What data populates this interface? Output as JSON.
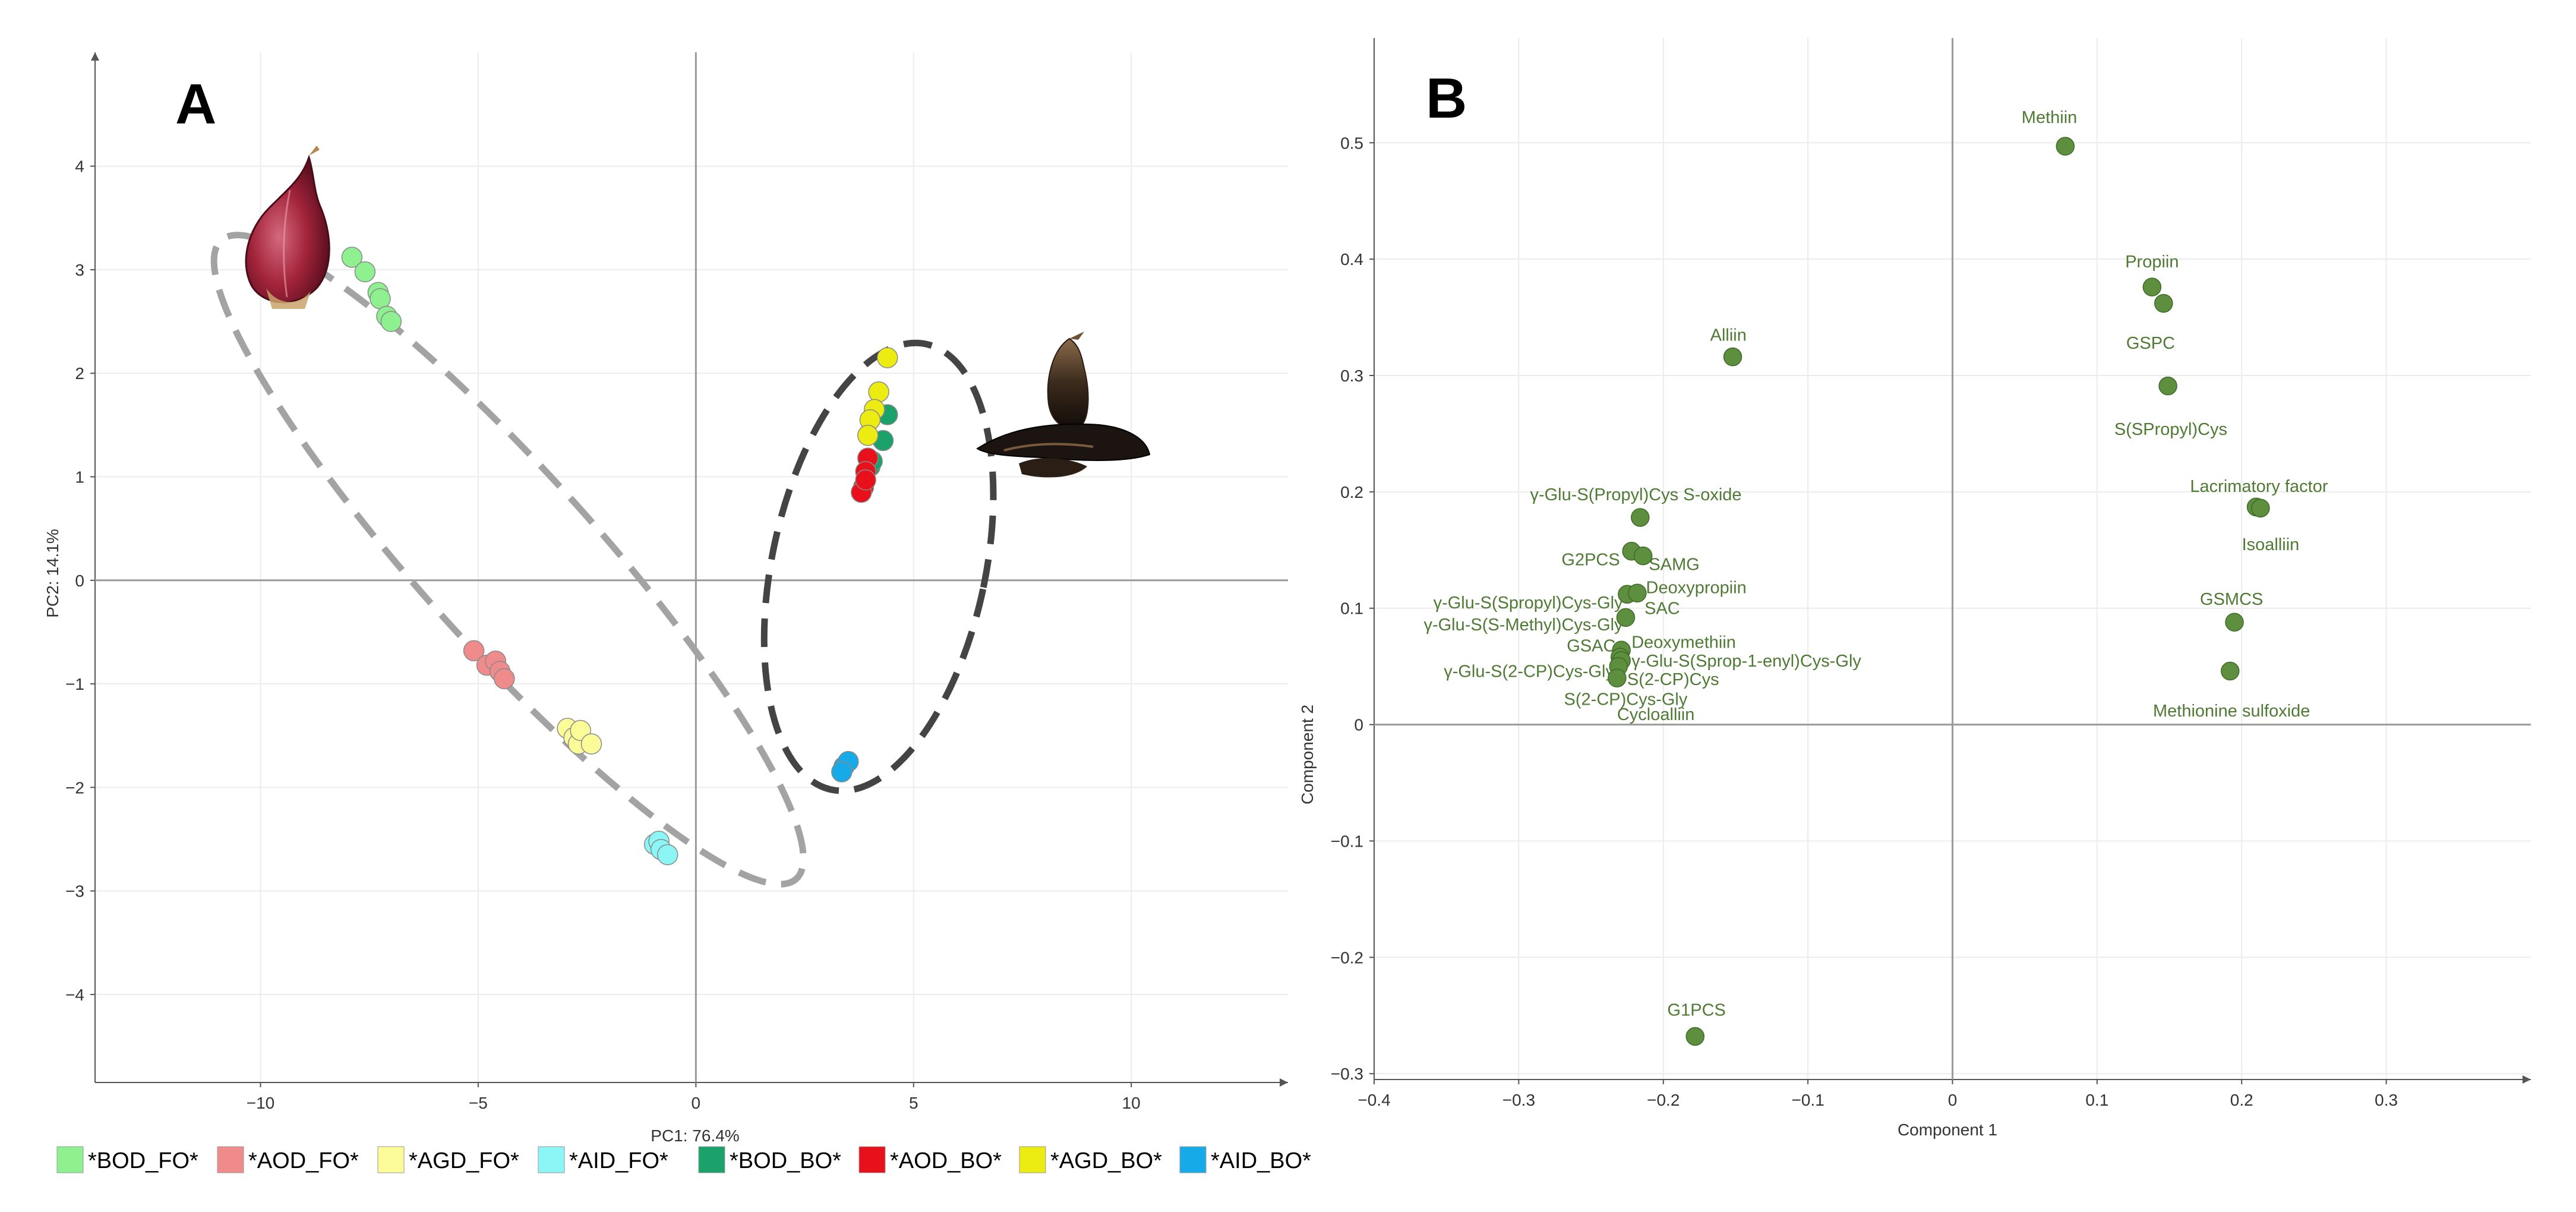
{
  "figure": {
    "panel_a_letter": "A",
    "panel_b_letter": "B"
  },
  "chart_data": [
    {
      "type": "scatter",
      "panel": "A",
      "title": "",
      "xlabel": "PC1: 76.4%",
      "ylabel": "PC2: 14.1%",
      "xlim": [
        -13.8,
        13.6
      ],
      "ylim": [
        -4.85,
        5.1
      ],
      "xticks": [
        -10,
        -5,
        0,
        5,
        10
      ],
      "yticks": [
        4,
        3,
        2,
        1,
        0,
        -1,
        -2,
        -3,
        -4
      ],
      "grid": true,
      "series": [
        {
          "name": "*BOD_FO*",
          "color": "#8ef08e",
          "points": [
            [
              -7.9,
              3.12
            ],
            [
              -7.6,
              2.98
            ],
            [
              -7.3,
              2.78
            ],
            [
              -7.25,
              2.72
            ],
            [
              -7.1,
              2.55
            ],
            [
              -7.0,
              2.5
            ]
          ]
        },
        {
          "name": "*AOD_FO*",
          "color": "#f08b8b",
          "points": [
            [
              -5.1,
              -0.68
            ],
            [
              -4.8,
              -0.82
            ],
            [
              -4.6,
              -0.78
            ],
            [
              -4.5,
              -0.88
            ],
            [
              -4.4,
              -0.95
            ]
          ]
        },
        {
          "name": "*AGD_FO*",
          "color": "#fbfb98",
          "points": [
            [
              -2.95,
              -1.43
            ],
            [
              -2.8,
              -1.52
            ],
            [
              -2.7,
              -1.58
            ],
            [
              -2.65,
              -1.45
            ],
            [
              -2.4,
              -1.58
            ]
          ]
        },
        {
          "name": "*AID_FO*",
          "color": "#8cf5f5",
          "points": [
            [
              -0.95,
              -2.55
            ],
            [
              -0.85,
              -2.52
            ],
            [
              -0.8,
              -2.6
            ],
            [
              -0.65,
              -2.65
            ]
          ]
        },
        {
          "name": "*BOD_BO*",
          "color": "#1aa26a",
          "points": [
            [
              4.4,
              1.6
            ],
            [
              4.3,
              1.35
            ],
            [
              4.0,
              1.1
            ],
            [
              4.05,
              1.15
            ]
          ]
        },
        {
          "name": "*AOD_BO*",
          "color": "#e8101a",
          "points": [
            [
              3.95,
              1.18
            ],
            [
              3.9,
              1.05
            ],
            [
              3.85,
              0.9
            ],
            [
              3.8,
              0.85
            ],
            [
              3.9,
              0.97
            ]
          ]
        },
        {
          "name": "*AGD_BO*",
          "color": "#ecec12",
          "points": [
            [
              4.4,
              2.15
            ],
            [
              4.2,
              1.82
            ],
            [
              4.1,
              1.65
            ],
            [
              4.0,
              1.55
            ],
            [
              3.95,
              1.4
            ]
          ]
        },
        {
          "name": "*AID_BO*",
          "color": "#17aae8",
          "points": [
            [
              3.4,
              -1.8
            ],
            [
              3.5,
              -1.75
            ],
            [
              3.35,
              -1.85
            ]
          ]
        }
      ],
      "annotations": [
        {
          "shape": "ellipse",
          "style": "dashed",
          "color": "#a3a3a3",
          "center": [
            -4.3,
            0.2
          ],
          "semi_axes": [
            2.0,
            4.15
          ],
          "rotation_deg": 42
        },
        {
          "shape": "ellipse",
          "style": "dashed",
          "color": "#444444",
          "center": [
            4.2,
            0.13
          ],
          "semi_axes": [
            2.45,
            2.2
          ],
          "rotation_deg": -12
        }
      ]
    },
    {
      "type": "scatter",
      "panel": "B",
      "title": "",
      "xlabel": "Component 1",
      "ylabel": "Component 2",
      "xlim": [
        -0.4,
        0.4
      ],
      "ylim": [
        -0.305,
        0.59
      ],
      "xticks": [
        -0.4,
        -0.3,
        -0.2,
        -0.1,
        0,
        0.1,
        0.2,
        0.3
      ],
      "xtick_labels": [
        "−0.4",
        "−0.3",
        "−0.2",
        "−0.1",
        "0",
        "0.1",
        "0.2",
        "0.3"
      ],
      "yticks": [
        0.5,
        0.4,
        0.3,
        0.2,
        0.1,
        0,
        -0.1,
        -0.2,
        -0.3
      ],
      "ytick_labels": [
        "0.5",
        "0.4",
        "0.3",
        "0.2",
        "0.1",
        "0",
        "−0.1",
        "−0.2",
        "−0.3"
      ],
      "grid": true,
      "point_color": "#5e8f3e",
      "points": [
        {
          "x": 0.078,
          "y": 0.497
        },
        {
          "x": 0.138,
          "y": 0.376
        },
        {
          "x": 0.146,
          "y": 0.362
        },
        {
          "x": 0.149,
          "y": 0.291
        },
        {
          "x": -0.152,
          "y": 0.316
        },
        {
          "x": 0.21,
          "y": 0.187
        },
        {
          "x": 0.213,
          "y": 0.186
        },
        {
          "x": -0.216,
          "y": 0.178
        },
        {
          "x": -0.222,
          "y": 0.149
        },
        {
          "x": -0.214,
          "y": 0.145
        },
        {
          "x": -0.225,
          "y": 0.112
        },
        {
          "x": -0.218,
          "y": 0.113
        },
        {
          "x": -0.226,
          "y": 0.092
        },
        {
          "x": 0.195,
          "y": 0.088
        },
        {
          "x": -0.229,
          "y": 0.064
        },
        {
          "x": -0.23,
          "y": 0.058
        },
        {
          "x": -0.229,
          "y": 0.055
        },
        {
          "x": -0.231,
          "y": 0.05
        },
        {
          "x": -0.232,
          "y": 0.04
        },
        {
          "x": 0.192,
          "y": 0.046
        },
        {
          "x": -0.178,
          "y": -0.268
        }
      ],
      "labels": [
        {
          "text": "Methiin",
          "x": 0.067,
          "y": 0.522,
          "anchor": "middle"
        },
        {
          "text": "Propiin",
          "x": 0.138,
          "y": 0.398,
          "anchor": "middle"
        },
        {
          "text": "GSPC",
          "x": 0.137,
          "y": 0.328,
          "anchor": "middle"
        },
        {
          "text": "S(SPropyl)Cys",
          "x": 0.151,
          "y": 0.254,
          "anchor": "middle"
        },
        {
          "text": "Alliin",
          "x": -0.155,
          "y": 0.335,
          "anchor": "middle"
        },
        {
          "text": "Lacrimatory factor",
          "x": 0.212,
          "y": 0.205,
          "anchor": "middle"
        },
        {
          "text": "Isoalliin",
          "x": 0.22,
          "y": 0.155,
          "anchor": "middle"
        },
        {
          "text": "γ-Glu-S(Propyl)Cys S-oxide",
          "x": -0.219,
          "y": 0.198,
          "anchor": "middle"
        },
        {
          "text": "G2PCS",
          "x": -0.23,
          "y": 0.142,
          "anchor": "end"
        },
        {
          "text": "SAMG",
          "x": -0.21,
          "y": 0.138,
          "anchor": "start"
        },
        {
          "text": "Deoxypropiin",
          "x": -0.212,
          "y": 0.118,
          "anchor": "start"
        },
        {
          "text": "SAC",
          "x": -0.213,
          "y": 0.1,
          "anchor": "start"
        },
        {
          "text": "γ-Glu-S(Spropyl)Cys-Gly",
          "x": -0.228,
          "y": 0.105,
          "anchor": "end"
        },
        {
          "text": "γ-Glu-S(S-Methyl)Cys-Gly",
          "x": -0.228,
          "y": 0.086,
          "anchor": "end"
        },
        {
          "text": "GSAC",
          "x": -0.233,
          "y": 0.068,
          "anchor": "end"
        },
        {
          "text": "Deoxymethiin",
          "x": -0.222,
          "y": 0.071,
          "anchor": "start"
        },
        {
          "text": "γ-Glu-S(Sprop-1-enyl)Cys-Gly",
          "x": -0.222,
          "y": 0.055,
          "anchor": "start"
        },
        {
          "text": "γ-Glu-S(2-CP)Cys-Gly",
          "x": -0.234,
          "y": 0.046,
          "anchor": "end"
        },
        {
          "text": "S(2-CP)Cys",
          "x": -0.225,
          "y": 0.039,
          "anchor": "start"
        },
        {
          "text": "S(2-CP)Cys-Gly",
          "x": -0.226,
          "y": 0.022,
          "anchor": "middle"
        },
        {
          "text": "Cycloalliin",
          "x": -0.232,
          "y": 0.009,
          "anchor": "start"
        },
        {
          "text": "GSMCS",
          "x": 0.193,
          "y": 0.108,
          "anchor": "middle"
        },
        {
          "text": "Methionine sulfoxide",
          "x": 0.193,
          "y": 0.012,
          "anchor": "middle"
        },
        {
          "text": "G1PCS",
          "x": -0.177,
          "y": -0.245,
          "anchor": "middle"
        }
      ]
    }
  ],
  "legend": [
    {
      "label": "*BOD_FO*",
      "color": "#8ef08e"
    },
    {
      "label": "*AOD_FO*",
      "color": "#f08b8b"
    },
    {
      "label": "*AGD_FO*",
      "color": "#fbfb98"
    },
    {
      "label": "*AID_FO*",
      "color": "#8cf5f5"
    },
    {
      "label": "*BOD_BO*",
      "color": "#1aa26a"
    },
    {
      "label": "*AOD_BO*",
      "color": "#e8101a"
    },
    {
      "label": "*AGD_BO*",
      "color": "#ecec12"
    },
    {
      "label": "*AID_BO*",
      "color": "#17aae8"
    }
  ],
  "images": [
    {
      "name": "fresh-onion-illustration",
      "description_kind": "photo"
    },
    {
      "name": "black-onion-illustration",
      "description_kind": "photo"
    }
  ]
}
